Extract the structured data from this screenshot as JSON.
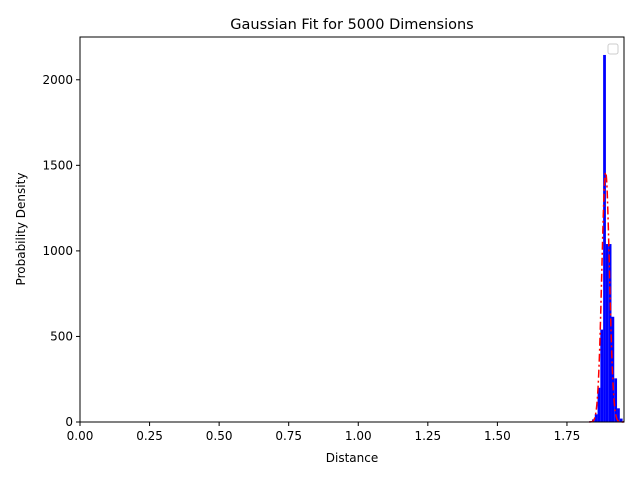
{
  "chart_data": {
    "type": "bar",
    "title": "Gaussian Fit for 5000 Dimensions",
    "xlabel": "Distance",
    "ylabel": "Probability Density",
    "xlim": [
      0.0,
      1.955
    ],
    "ylim": [
      0,
      2250
    ],
    "xticks": [
      0.0,
      0.25,
      0.5,
      0.75,
      1.0,
      1.25,
      1.5,
      1.75
    ],
    "xtick_labels": [
      "0.00",
      "0.25",
      "0.50",
      "0.75",
      "1.00",
      "1.25",
      "1.50",
      "1.75"
    ],
    "yticks": [
      0,
      500,
      1000,
      1500,
      2000
    ],
    "ytick_labels": [
      "0",
      "500",
      "1000",
      "1500",
      "2000"
    ],
    "legend": {
      "placement": "top-right",
      "entries": []
    },
    "colors": {
      "bars": "#0000ff",
      "fit": "#ff0000",
      "axes": "#000000"
    },
    "histogram": {
      "bin_width": 0.01,
      "bins": [
        {
          "x": 1.835,
          "value": 5
        },
        {
          "x": 1.845,
          "value": 15
        },
        {
          "x": 1.855,
          "value": 45
        },
        {
          "x": 1.865,
          "value": 200
        },
        {
          "x": 1.875,
          "value": 540
        },
        {
          "x": 1.885,
          "value": 2145
        },
        {
          "x": 1.895,
          "value": 1040
        },
        {
          "x": 1.905,
          "value": 1040
        },
        {
          "x": 1.915,
          "value": 615
        },
        {
          "x": 1.925,
          "value": 255
        },
        {
          "x": 1.935,
          "value": 80
        },
        {
          "x": 1.945,
          "value": 20
        },
        {
          "x": 1.955,
          "value": 5
        }
      ]
    },
    "fit": {
      "line_style": "dash-dot",
      "mean": 1.889,
      "sigma": 0.0137,
      "peak": 1460,
      "x_range": [
        1.83,
        1.955
      ]
    }
  }
}
